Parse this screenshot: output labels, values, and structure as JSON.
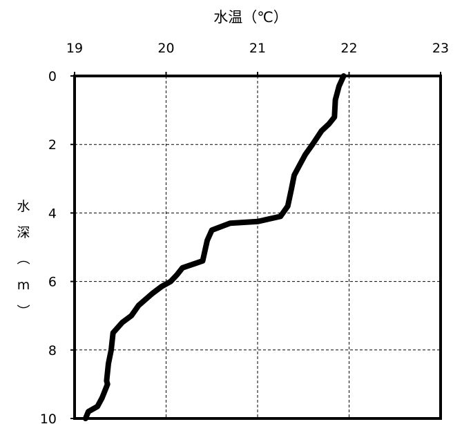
{
  "chart_data": {
    "type": "line",
    "title": "",
    "xlabel": "水温（℃）",
    "ylabel": "水深（m）",
    "xlim": [
      19,
      23
    ],
    "ylim": [
      10,
      0
    ],
    "x_ticks": [
      "19",
      "20",
      "21",
      "22",
      "23"
    ],
    "y_ticks": [
      "0",
      "2",
      "4",
      "6",
      "8",
      "10"
    ],
    "grid": "dashed",
    "series": [
      {
        "name": "",
        "color": "#000000",
        "points": [
          {
            "x": 21.94,
            "y": 0.0
          },
          {
            "x": 21.89,
            "y": 0.3
          },
          {
            "x": 21.85,
            "y": 0.7
          },
          {
            "x": 21.84,
            "y": 1.2
          },
          {
            "x": 21.78,
            "y": 1.4
          },
          {
            "x": 21.7,
            "y": 1.6
          },
          {
            "x": 21.65,
            "y": 1.8
          },
          {
            "x": 21.6,
            "y": 2.0
          },
          {
            "x": 21.52,
            "y": 2.3
          },
          {
            "x": 21.45,
            "y": 2.65
          },
          {
            "x": 21.4,
            "y": 2.9
          },
          {
            "x": 21.37,
            "y": 3.3
          },
          {
            "x": 21.33,
            "y": 3.8
          },
          {
            "x": 21.25,
            "y": 4.1
          },
          {
            "x": 21.0,
            "y": 4.25
          },
          {
            "x": 20.7,
            "y": 4.3
          },
          {
            "x": 20.5,
            "y": 4.5
          },
          {
            "x": 20.45,
            "y": 4.8
          },
          {
            "x": 20.4,
            "y": 5.4
          },
          {
            "x": 20.18,
            "y": 5.6
          },
          {
            "x": 20.12,
            "y": 5.8
          },
          {
            "x": 20.05,
            "y": 6.0
          },
          {
            "x": 19.95,
            "y": 6.15
          },
          {
            "x": 19.85,
            "y": 6.35
          },
          {
            "x": 19.7,
            "y": 6.7
          },
          {
            "x": 19.62,
            "y": 7.0
          },
          {
            "x": 19.52,
            "y": 7.2
          },
          {
            "x": 19.42,
            "y": 7.5
          },
          {
            "x": 19.4,
            "y": 8.0
          },
          {
            "x": 19.37,
            "y": 8.4
          },
          {
            "x": 19.35,
            "y": 8.9
          },
          {
            "x": 19.36,
            "y": 9.0
          },
          {
            "x": 19.3,
            "y": 9.4
          },
          {
            "x": 19.25,
            "y": 9.65
          },
          {
            "x": 19.15,
            "y": 9.8
          },
          {
            "x": 19.12,
            "y": 10.0
          }
        ]
      }
    ]
  }
}
